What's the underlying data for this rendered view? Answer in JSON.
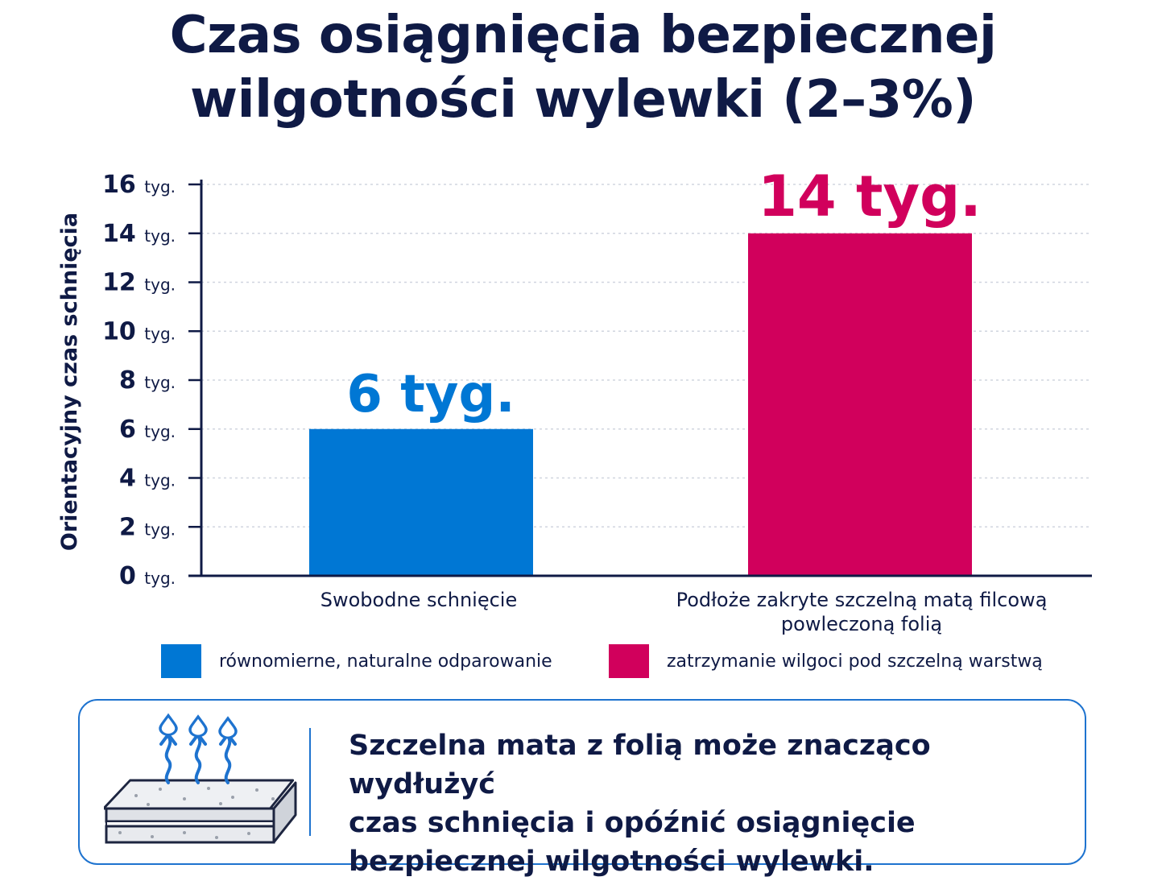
{
  "colors": {
    "navy": "#0f1a45",
    "blue": "#0077d4",
    "magenta": "#d1005c",
    "grid": "#d0d5df"
  },
  "title_lines": [
    "Czas osiągnięcia bezpiecznej",
    "wilgotności wylewki (2–3%)"
  ],
  "chart_data": {
    "type": "bar",
    "ylabel": "Orientacyjny czas schnięcia",
    "ylim": [
      0,
      16
    ],
    "yticks": [
      {
        "value": 0,
        "num": "0",
        "unit": "tyg."
      },
      {
        "value": 2,
        "num": "2",
        "unit": "tyg."
      },
      {
        "value": 4,
        "num": "4",
        "unit": "tyg."
      },
      {
        "value": 6,
        "num": "6",
        "unit": "tyg."
      },
      {
        "value": 8,
        "num": "8",
        "unit": "tyg."
      },
      {
        "value": 10,
        "num": "10",
        "unit": "tyg."
      },
      {
        "value": 12,
        "num": "12",
        "unit": "tyg."
      },
      {
        "value": 14,
        "num": "14",
        "unit": "tyg."
      },
      {
        "value": 16,
        "num": "16",
        "unit": "tyg."
      }
    ],
    "grid": true,
    "categories": [
      [
        "Swobodne schnięcie"
      ],
      [
        "Podłoże zakryte szczelną matą filcową",
        "powleczoną folią"
      ]
    ],
    "values": [
      6,
      14
    ],
    "value_labels": [
      "6 tyg.",
      "14 tyg."
    ],
    "bar_colors": [
      "#0077d4",
      "#d1005c"
    ],
    "legend": [
      {
        "label": "równomierne, naturalne odparowanie",
        "color": "#0077d4"
      },
      {
        "label": "zatrzymanie wilgoci pod szczelną warstwą",
        "color": "#d1005c"
      }
    ],
    "legend_position": "bottom"
  },
  "info": {
    "icon": "drying-mat-icon",
    "lines": [
      "Szczelna mata z folią może znacząco wydłużyć",
      "czas schnięcia i opóźnić osiągnięcie",
      "bezpiecznej wilgotności wylewki."
    ]
  }
}
